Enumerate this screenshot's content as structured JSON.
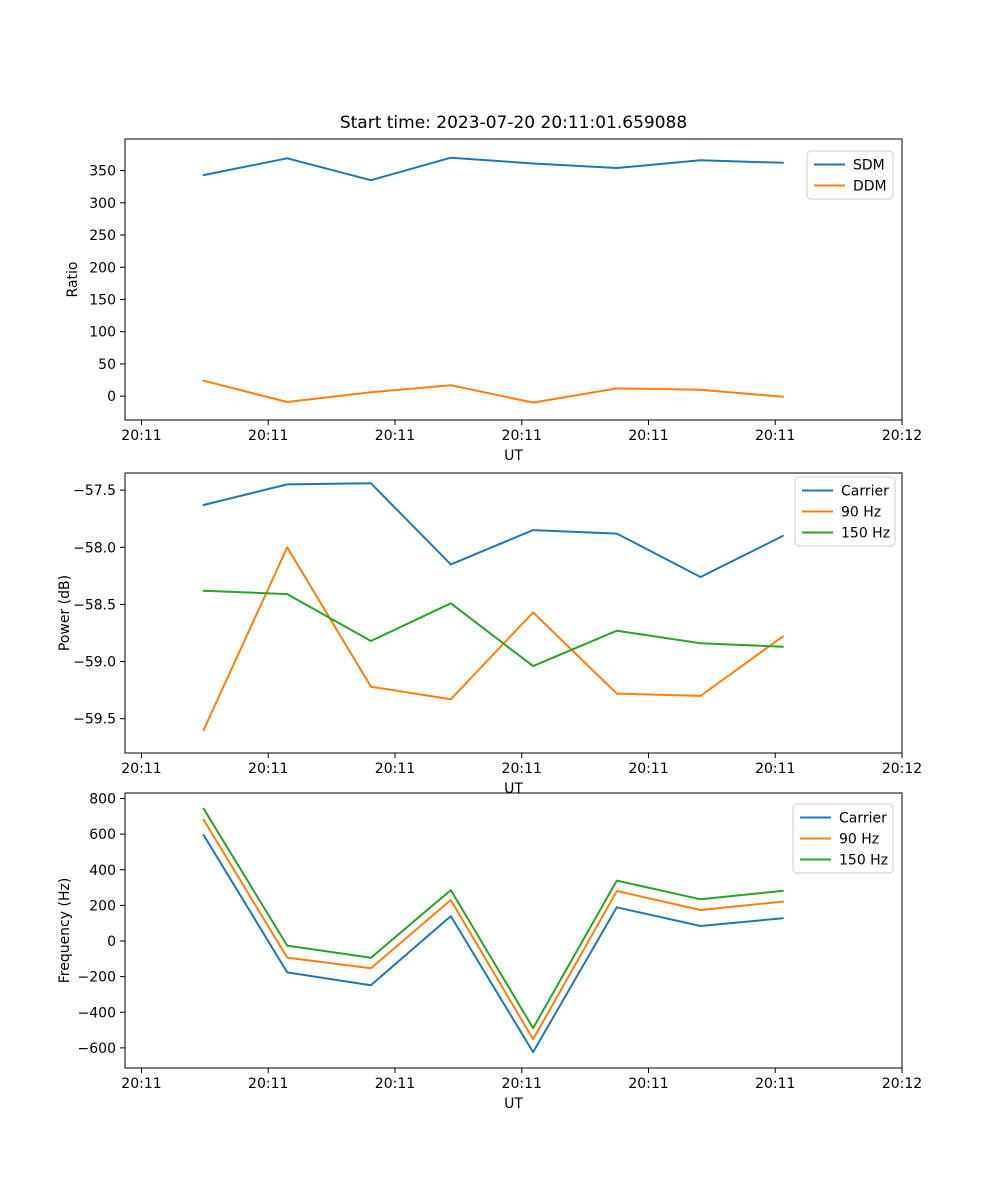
{
  "figure": {
    "title": "Start time: 2023-07-20 20:11:01.659088"
  },
  "colors": {
    "blue": "#1f77b4",
    "orange": "#ff7f0e",
    "green": "#2ca02c",
    "legend_border": "#cccccc",
    "axis": "#000000"
  },
  "chart_data": [
    {
      "type": "line",
      "title": "Start time: 2023-07-20 20:11:01.659088",
      "xlabel": "UT",
      "ylabel": "Ratio",
      "x_unit": "seconds after 20:11:00 UT",
      "x": [
        4.9,
        11.5,
        18.1,
        24.4,
        30.9,
        37.5,
        44.1,
        50.6
      ],
      "xlim": [
        -1.3,
        60
      ],
      "ylim": [
        -37,
        399
      ],
      "xticks": [
        0,
        10,
        20,
        30,
        40,
        50,
        60
      ],
      "xtick_labels": [
        "20:11",
        "20:11",
        "20:11",
        "20:11",
        "20:11",
        "20:11",
        "20:12"
      ],
      "yticks": [
        0,
        50,
        100,
        150,
        200,
        250,
        300,
        350
      ],
      "ytick_labels": [
        "0",
        "50",
        "100",
        "150",
        "200",
        "250",
        "300",
        "350"
      ],
      "grid": false,
      "legend_position": "upper right",
      "series": [
        {
          "name": "SDM",
          "color": "#1f77b4",
          "values": [
            343,
            369,
            335,
            370,
            361,
            354,
            366,
            362
          ]
        },
        {
          "name": "DDM",
          "color": "#ff7f0e",
          "values": [
            24,
            -9,
            6,
            17,
            -10,
            12,
            10,
            -1
          ]
        }
      ]
    },
    {
      "type": "line",
      "title": "",
      "xlabel": "UT",
      "ylabel": "Power (dB)",
      "x_unit": "seconds after 20:11:00 UT",
      "x": [
        4.9,
        11.5,
        18.1,
        24.4,
        30.9,
        37.5,
        44.1,
        50.6
      ],
      "xlim": [
        -1.3,
        60
      ],
      "ylim": [
        -59.8,
        -57.35
      ],
      "xticks": [
        0,
        10,
        20,
        30,
        40,
        50,
        60
      ],
      "xtick_labels": [
        "20:11",
        "20:11",
        "20:11",
        "20:11",
        "20:11",
        "20:11",
        "20:12"
      ],
      "yticks": [
        -59.5,
        -59.0,
        -58.5,
        -58.0,
        -57.5
      ],
      "ytick_labels": [
        "−59.5",
        "−59.0",
        "−58.5",
        "−58.0",
        "−57.5"
      ],
      "grid": false,
      "legend_position": "upper right",
      "series": [
        {
          "name": "Carrier",
          "color": "#1f77b4",
          "values": [
            -57.63,
            -57.45,
            -57.44,
            -58.15,
            -57.85,
            -57.88,
            -58.26,
            -57.9
          ]
        },
        {
          "name": "90 Hz",
          "color": "#ff7f0e",
          "values": [
            -59.6,
            -58.0,
            -59.22,
            -59.33,
            -58.57,
            -59.28,
            -59.3,
            -58.78
          ]
        },
        {
          "name": "150 Hz",
          "color": "#2ca02c",
          "values": [
            -58.38,
            -58.41,
            -58.82,
            -58.49,
            -59.04,
            -58.73,
            -58.84,
            -58.87
          ]
        }
      ]
    },
    {
      "type": "line",
      "title": "",
      "xlabel": "UT",
      "ylabel": "Frequency (Hz)",
      "x_unit": "seconds after 20:11:00 UT",
      "x": [
        4.9,
        11.5,
        18.1,
        24.4,
        30.9,
        37.5,
        44.1,
        50.6
      ],
      "xlim": [
        -1.3,
        60
      ],
      "ylim": [
        -713,
        831
      ],
      "xticks": [
        0,
        10,
        20,
        30,
        40,
        50,
        60
      ],
      "xtick_labels": [
        "20:11",
        "20:11",
        "20:11",
        "20:11",
        "20:11",
        "20:11",
        "20:12"
      ],
      "yticks": [
        -600,
        -400,
        -200,
        0,
        200,
        400,
        600,
        800
      ],
      "ytick_labels": [
        "−600",
        "−400",
        "−200",
        "0",
        "200",
        "400",
        "600",
        "800"
      ],
      "grid": false,
      "legend_position": "upper right",
      "series": [
        {
          "name": "Carrier",
          "color": "#1f77b4",
          "values": [
            595,
            -176,
            -248,
            140,
            -624,
            189,
            84,
            128
          ]
        },
        {
          "name": "90 Hz",
          "color": "#ff7f0e",
          "values": [
            681,
            -93,
            -153,
            230,
            -552,
            281,
            174,
            221
          ]
        },
        {
          "name": "150 Hz",
          "color": "#2ca02c",
          "values": [
            743,
            -26,
            -94,
            286,
            -489,
            339,
            234,
            282
          ]
        }
      ]
    }
  ]
}
